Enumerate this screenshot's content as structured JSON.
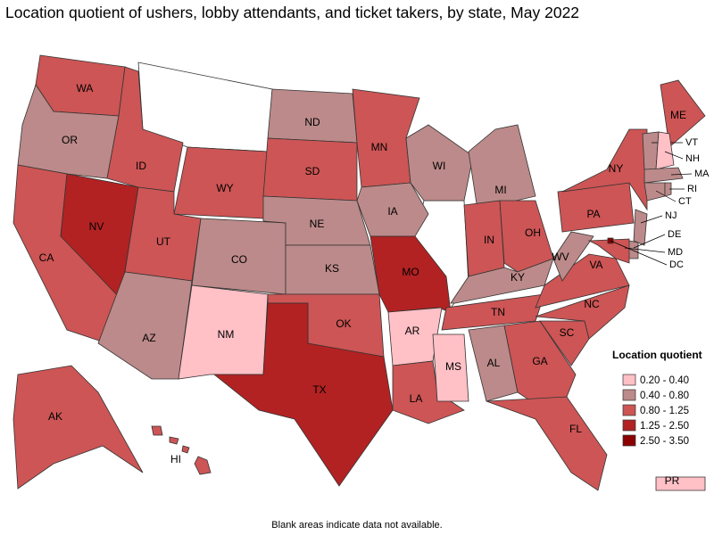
{
  "title": "Location quotient of ushers, lobby attendants, and ticket takers, by state, May 2022",
  "legend": {
    "title": "Location quotient",
    "items": [
      {
        "label": "0.20 - 0.40",
        "color": "#ffc0c6"
      },
      {
        "label": "0.40 - 0.80",
        "color": "#bc8a8a"
      },
      {
        "label": "0.80 - 1.25",
        "color": "#cd5555"
      },
      {
        "label": "1.25 - 2.50",
        "color": "#b22222"
      },
      {
        "label": "2.50 - 3.50",
        "color": "#8b0000"
      }
    ]
  },
  "states": [
    {
      "label": "WA",
      "class": "0.80 - 1.25"
    },
    {
      "label": "OR",
      "class": "0.40 - 0.80"
    },
    {
      "label": "CA",
      "class": "0.80 - 1.25"
    },
    {
      "label": "NV",
      "class": "1.25 - 2.50"
    },
    {
      "label": "ID",
      "class": "0.80 - 1.25"
    },
    {
      "label": "WY",
      "class": "0.80 - 1.25"
    },
    {
      "label": "UT",
      "class": "0.80 - 1.25"
    },
    {
      "label": "AZ",
      "class": "0.40 - 0.80"
    },
    {
      "label": "CO",
      "class": "0.40 - 0.80"
    },
    {
      "label": "NM",
      "class": "0.20 - 0.40"
    },
    {
      "label": "ND",
      "class": "0.40 - 0.80"
    },
    {
      "label": "SD",
      "class": "0.80 - 1.25"
    },
    {
      "label": "NE",
      "class": "0.40 - 0.80"
    },
    {
      "label": "KS",
      "class": "0.40 - 0.80"
    },
    {
      "label": "OK",
      "class": "0.80 - 1.25"
    },
    {
      "label": "TX",
      "class": "1.25 - 2.50"
    },
    {
      "label": "MN",
      "class": "0.80 - 1.25"
    },
    {
      "label": "IA",
      "class": "0.40 - 0.80"
    },
    {
      "label": "MO",
      "class": "1.25 - 2.50"
    },
    {
      "label": "AR",
      "class": "0.20 - 0.40"
    },
    {
      "label": "LA",
      "class": "0.80 - 1.25"
    },
    {
      "label": "WI",
      "class": "0.40 - 0.80"
    },
    {
      "label": "MI",
      "class": "0.40 - 0.80"
    },
    {
      "label": "IN",
      "class": "0.80 - 1.25"
    },
    {
      "label": "OH",
      "class": "0.80 - 1.25"
    },
    {
      "label": "KY",
      "class": "0.40 - 0.80"
    },
    {
      "label": "TN",
      "class": "0.80 - 1.25"
    },
    {
      "label": "MS",
      "class": "0.20 - 0.40"
    },
    {
      "label": "AL",
      "class": "0.40 - 0.80"
    },
    {
      "label": "GA",
      "class": "0.80 - 1.25"
    },
    {
      "label": "FL",
      "class": "0.80 - 1.25"
    },
    {
      "label": "SC",
      "class": "0.80 - 1.25"
    },
    {
      "label": "NC",
      "class": "0.80 - 1.25"
    },
    {
      "label": "VA",
      "class": "0.80 - 1.25"
    },
    {
      "label": "WV",
      "class": "0.40 - 0.80"
    },
    {
      "label": "PA",
      "class": "0.80 - 1.25"
    },
    {
      "label": "NY",
      "class": "0.80 - 1.25"
    },
    {
      "label": "ME",
      "class": "0.80 - 1.25"
    },
    {
      "label": "VT",
      "class": "0.40 - 0.80"
    },
    {
      "label": "NH",
      "class": "0.20 - 0.40"
    },
    {
      "label": "MA",
      "class": "0.40 - 0.80"
    },
    {
      "label": "CT",
      "class": "0.40 - 0.80"
    },
    {
      "label": "RI",
      "class": "0.40 - 0.80"
    },
    {
      "label": "NJ",
      "class": "0.40 - 0.80"
    },
    {
      "label": "DE",
      "class": "0.40 - 0.80"
    },
    {
      "label": "MD",
      "class": "0.80 - 1.25"
    },
    {
      "label": "DC",
      "class": "2.50 - 3.50"
    },
    {
      "label": "AK",
      "class": "0.80 - 1.25"
    },
    {
      "label": "HI",
      "class": "0.80 - 1.25"
    },
    {
      "label": "PR",
      "class": "0.20 - 0.40"
    }
  ],
  "note": "Blank areas indicate data not available."
}
